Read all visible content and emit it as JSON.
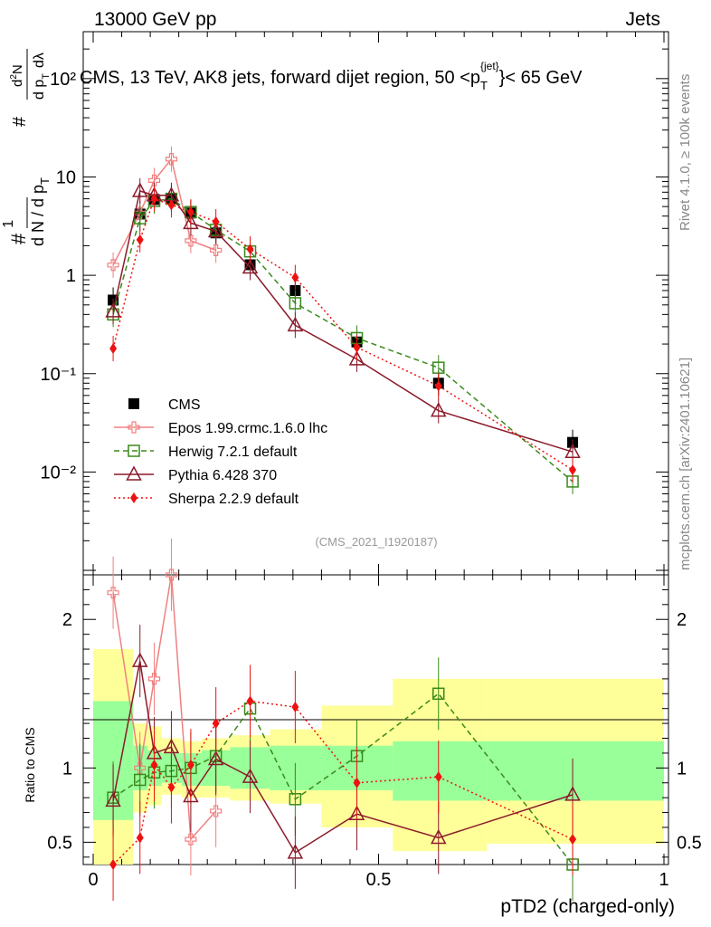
{
  "header": {
    "left": "13000 GeV pp",
    "right": "Jets"
  },
  "title": "CMS, 13 TeV, AK8 jets, forward dijet region, 50 <p",
  "title_sup": "{jet}",
  "title_sub": "T",
  "title_end": "}< 65 GeV",
  "side_rivet": "Rivet 4.1.0, ≥ 100k events",
  "side_mcplots": "mcplots.cern.ch [arXiv:2401.10621]",
  "watermark": "(CMS_2021_I1920187)",
  "ylabel_main": "1/N dN/dpT dλ",
  "ylabel_ratio": "Ratio to CMS",
  "xlabel": "pTD2 (charged-only)",
  "colors": {
    "cms": "#000000",
    "epos": "#f08080",
    "herwig": "#3a8a1a",
    "pythia": "#8b1a2b",
    "sherpa": "#ee1111",
    "band_inner": "#99ff99",
    "band_outer": "#ffff99"
  },
  "chart_data": {
    "type": "line",
    "x_range": [
      0,
      1
    ],
    "y_range_main": [
      0.0009,
      300
    ],
    "y_scale_main": "log",
    "y_range_ratio": [
      0.35,
      2.3
    ],
    "x_ticks": [
      "0",
      "0.5",
      "1"
    ],
    "y_ticks_main": [
      "10⁻²",
      "10⁻¹",
      "1",
      "10",
      "10²"
    ],
    "y_ticks_ratio": [
      "0.5",
      "1",
      "2"
    ],
    "x": [
      0.035,
      0.082,
      0.107,
      0.137,
      0.171,
      0.215,
      0.275,
      0.354,
      0.462,
      0.605,
      0.84
    ],
    "x_edges": [
      0,
      0.07,
      0.095,
      0.12,
      0.155,
      0.19,
      0.24,
      0.31,
      0.4,
      0.525,
      0.69,
      1.0
    ],
    "legend_labels": [
      "CMS",
      "Epos 1.99.crmc.1.6.0 lhc",
      "Herwig 7.2.1 default",
      "Pythia 6.428 370",
      "Sherpa 2.2.9 default"
    ],
    "series": [
      {
        "name": "CMS",
        "values": [
          0.56,
          4.2,
          5.9,
          6.0,
          4.3,
          2.7,
          1.28,
          0.7,
          0.21,
          0.08,
          0.02
        ],
        "band_inner": [
          [
            0.65,
            1.45
          ],
          [
            0.85,
            1.15
          ],
          [
            0.88,
            1.12
          ],
          [
            0.9,
            1.1
          ],
          [
            0.88,
            1.1
          ],
          [
            0.88,
            1.12
          ],
          [
            0.86,
            1.14
          ],
          [
            0.85,
            1.15
          ],
          [
            0.85,
            1.15
          ],
          [
            0.78,
            1.18
          ],
          [
            0.78,
            1.18
          ]
        ],
        "band_outer": [
          [
            0.35,
            1.8
          ],
          [
            0.7,
            1.3
          ],
          [
            0.75,
            1.28
          ],
          [
            0.82,
            1.2
          ],
          [
            0.8,
            1.18
          ],
          [
            0.8,
            1.2
          ],
          [
            0.78,
            1.22
          ],
          [
            0.76,
            1.26
          ],
          [
            0.6,
            1.42
          ],
          [
            0.44,
            1.6
          ],
          [
            0.49,
            1.6
          ]
        ]
      },
      {
        "name": "Epos 1.99.crmc.1.6.0 lhc",
        "values": [
          1.27,
          4.3,
          9.2,
          15.2,
          2.25,
          1.8,
          null,
          null,
          null,
          null,
          null
        ]
      },
      {
        "name": "Herwig 7.2.1 default",
        "values": [
          0.4,
          3.8,
          5.7,
          6.0,
          4.4,
          2.9,
          1.75,
          0.52,
          0.23,
          0.115,
          0.008
        ]
      },
      {
        "name": "Pythia 6.428 370",
        "values": [
          0.43,
          7.2,
          6.5,
          6.5,
          3.4,
          2.8,
          1.2,
          0.31,
          0.14,
          0.042,
          0.016
        ]
      },
      {
        "name": "Sherpa 2.2.9 default",
        "values": [
          0.18,
          2.3,
          6.0,
          5.2,
          4.4,
          3.5,
          1.85,
          0.95,
          0.185,
          0.075,
          0.0105
        ]
      }
    ],
    "ratios": [
      {
        "name": "Epos 1.99.crmc.1.6.0 lhc",
        "values": [
          2.18,
          1.0,
          1.6,
          2.4,
          0.52,
          0.71,
          null,
          null,
          null,
          null,
          null
        ]
      },
      {
        "name": "Herwig 7.2.1 default",
        "values": [
          0.8,
          0.92,
          0.97,
          0.98,
          1.0,
          1.08,
          1.4,
          0.79,
          1.08,
          1.5,
          0.35
        ]
      },
      {
        "name": "Pythia 6.428 370",
        "values": [
          0.78,
          1.72,
          1.1,
          1.14,
          0.81,
          1.06,
          0.94,
          0.43,
          0.69,
          0.53,
          0.82
        ]
      },
      {
        "name": "Sherpa 2.2.9 default",
        "values": [
          0.32,
          0.53,
          1.02,
          0.87,
          1.02,
          1.3,
          1.45,
          1.41,
          0.9,
          0.94,
          0.52
        ]
      }
    ]
  }
}
